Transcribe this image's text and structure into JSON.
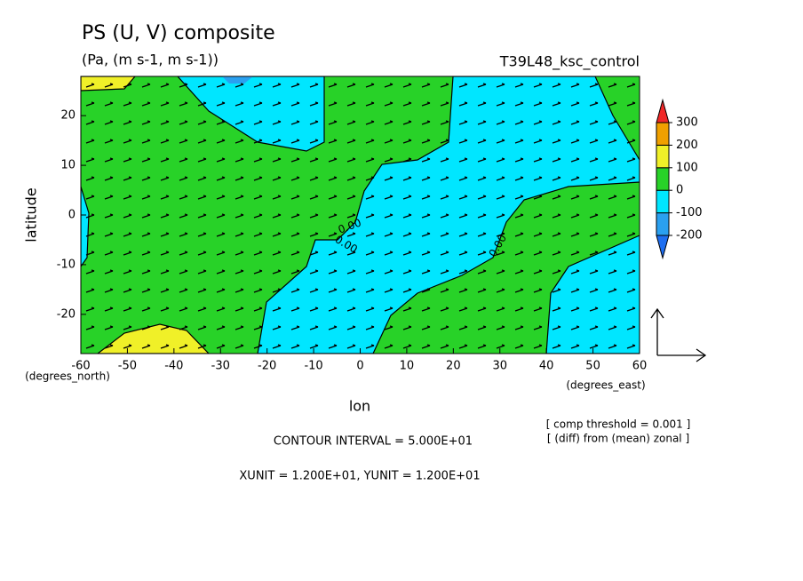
{
  "chart_data": {
    "type": "contour",
    "title": "PS (U, V) composite",
    "subtitle": "(Pa, (m s-1, m s-1))",
    "run_name": "T39L48_ksc_control",
    "x_label": "lon",
    "y_label": "latitude",
    "x_units": "(degrees_east)",
    "y_units": "(degrees_north)",
    "xlim": [
      -60,
      60
    ],
    "ylim": [
      -27.9,
      27.9
    ],
    "xticks": [
      -60,
      -50,
      -40,
      -30,
      -20,
      -10,
      0,
      10,
      20,
      30,
      40,
      50,
      60
    ],
    "yticks": [
      -20,
      -10,
      0,
      10,
      20
    ],
    "contour_labels": [
      "0.00",
      "0.00",
      "0.00"
    ],
    "colorbar": {
      "levels": [
        -200,
        -100,
        0,
        100,
        200,
        300
      ],
      "colors": [
        "#1e6ef0",
        "#2aa0f0",
        "#00e6ff",
        "#28d228",
        "#f0f028",
        "#f0a000",
        "#f02828"
      ]
    },
    "notes": [
      "[ comp threshold = 0.001 ]",
      "[ (diff) from (mean) zonal ]"
    ],
    "contour_interval": "CONTOUR INTERVAL = 5.000E+01",
    "vector_units": "XUNIT = 1.200E+01, YUNIT = 1.200E+01"
  }
}
